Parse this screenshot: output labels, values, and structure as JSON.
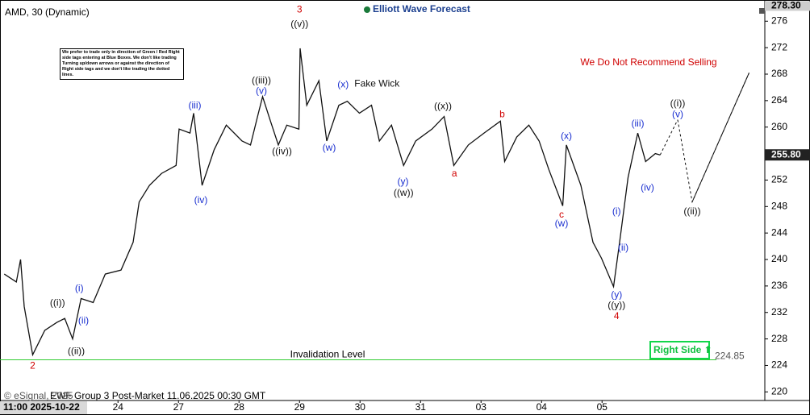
{
  "chart_data": {
    "type": "line",
    "title": "AMD, 30 (Dynamic)",
    "brand": "Elliott Wave Forecast",
    "footer": "EWF Group 3 Post-Market 11.06.2025 00:30 GMT",
    "copyright": "© eSignal, 2025",
    "x_cursor_label": "11:00 2025-10-22",
    "right_side_tag": "Right Side ⬆",
    "note": "We prefer to trade only in direction of Green / Red Right side tags entering at Blue Boxes. We don't like trading Turning up/down arrows or against the direction of Right side tags and we don't like trading the dotted lines.",
    "color": "#111111",
    "x": [
      -0.88,
      -0.68,
      -0.61,
      -0.55,
      -0.41,
      -0.21,
      -0.01,
      0.12,
      0.25,
      0.39,
      0.59,
      0.79,
      1.05,
      1.25,
      1.35,
      1.52,
      1.72,
      1.96,
      2.01,
      2.19,
      2.25,
      2.39,
      2.59,
      2.79,
      3.05,
      3.19,
      3.32,
      3.39,
      3.52,
      3.65,
      3.79,
      3.99,
      4.01,
      4.12,
      4.32,
      4.45,
      4.65,
      4.79,
      4.99,
      5.19,
      5.32,
      5.52,
      5.72,
      5.92,
      6.19,
      6.39,
      6.55,
      6.79,
      7.05,
      7.32,
      7.39,
      7.59,
      7.79,
      7.96,
      8.12,
      8.35,
      8.41,
      8.65,
      8.85,
      8.99,
      9.19,
      9.29,
      9.43,
      9.59,
      9.72,
      9.88,
      9.96
    ],
    "values": [
      237.8,
      236.6,
      240,
      232.9,
      225.6,
      229.3,
      230.5,
      231.1,
      228,
      234.1,
      233.5,
      237.8,
      238.4,
      242.6,
      248.7,
      251.2,
      253,
      254.2,
      259.7,
      259.1,
      262.1,
      251.2,
      256.6,
      260.3,
      257.9,
      257.3,
      262.1,
      264.6,
      260.9,
      257.3,
      260.3,
      259.7,
      271.9,
      263.3,
      267,
      257.9,
      263.3,
      263.9,
      262.1,
      263.3,
      257.9,
      260.3,
      254.2,
      257.9,
      259.7,
      261.6,
      254.2,
      257.3,
      259.1,
      260.9,
      254.8,
      258.5,
      260.3,
      257.9,
      253.6,
      248.1,
      257.3,
      251.2,
      242.6,
      240.2,
      235.9,
      242.6,
      252.4,
      259.1,
      254.8,
      256,
      255.8
    ],
    "projection": {
      "x": [
        10.25,
        10.49,
        11.43
      ],
      "values": [
        261.1,
        248.7,
        268.2
      ],
      "color": "#111111"
    },
    "ylim": [
      218.7,
      279.2
    ],
    "yticks": [
      220,
      224,
      228,
      232,
      236,
      240,
      244,
      248,
      252,
      256,
      260,
      264,
      268,
      272,
      276
    ],
    "xlim": [
      -0.95,
      11.69
    ],
    "xticks": [
      {
        "value": 1,
        "label": "24"
      },
      {
        "value": 2,
        "label": "27"
      },
      {
        "value": 3,
        "label": "28"
      },
      {
        "value": 4,
        "label": "29"
      },
      {
        "value": 5,
        "label": "30"
      },
      {
        "value": 6,
        "label": "31"
      },
      {
        "value": 7,
        "label": "03"
      },
      {
        "value": 8,
        "label": "04"
      },
      {
        "value": 9,
        "label": "05"
      }
    ],
    "last_price": {
      "value": 255.8,
      "label": "255.80"
    },
    "high_price": {
      "value": 278.3,
      "label": "278.30"
    },
    "invalidation": {
      "value": 224.85,
      "text": "Invalidation Level",
      "color": "#33cc33"
    },
    "annotations": [
      {
        "text": "3",
        "x": 4.0,
        "y": 277.7,
        "color": "#d00000"
      },
      {
        "text": "((v))",
        "x": 4.0,
        "y": 275.5,
        "color": "#111111"
      },
      {
        "text": "((iii))",
        "x": 3.37,
        "y": 267.0,
        "color": "#111111"
      },
      {
        "text": "(v)",
        "x": 3.37,
        "y": 265.4,
        "color": "#1a2fd0"
      },
      {
        "text": "(iii)",
        "x": 2.27,
        "y": 263.2,
        "color": "#1a2fd0"
      },
      {
        "text": "(iv)",
        "x": 2.37,
        "y": 248.9,
        "color": "#1a2fd0"
      },
      {
        "text": "((iv))",
        "x": 3.71,
        "y": 256.3,
        "color": "#111111"
      },
      {
        "text": "(x)",
        "x": 4.72,
        "y": 266.4,
        "color": "#1a2fd0"
      },
      {
        "text": "(w)",
        "x": 4.49,
        "y": 256.8,
        "color": "#1a2fd0"
      },
      {
        "text": "Fake Wick",
        "x": 5.28,
        "y": 266.5,
        "color": "#111111"
      },
      {
        "text": "((x))",
        "x": 6.37,
        "y": 263.1,
        "color": "#111111"
      },
      {
        "text": "(y)",
        "x": 5.71,
        "y": 251.7,
        "color": "#1a2fd0"
      },
      {
        "text": "((w))",
        "x": 5.72,
        "y": 250.0,
        "color": "#111111"
      },
      {
        "text": "b",
        "x": 7.35,
        "y": 261.9,
        "color": "#d00000"
      },
      {
        "text": "a",
        "x": 6.56,
        "y": 252.9,
        "color": "#d00000"
      },
      {
        "text": "(x)",
        "x": 8.41,
        "y": 258.6,
        "color": "#1a2fd0"
      },
      {
        "text": "c",
        "x": 8.33,
        "y": 246.7,
        "color": "#d00000"
      },
      {
        "text": "(w)",
        "x": 8.33,
        "y": 245.4,
        "color": "#1a2fd0"
      },
      {
        "text": "(iii)",
        "x": 9.59,
        "y": 260.5,
        "color": "#1a2fd0"
      },
      {
        "text": "(iv)",
        "x": 9.75,
        "y": 250.8,
        "color": "#1a2fd0"
      },
      {
        "text": "(i)",
        "x": 9.24,
        "y": 247.2,
        "color": "#1a2fd0"
      },
      {
        "text": "(ii)",
        "x": 9.35,
        "y": 241.7,
        "color": "#1a2fd0"
      },
      {
        "text": "(y)",
        "x": 9.24,
        "y": 234.6,
        "color": "#1a2fd0"
      },
      {
        "text": "((y))",
        "x": 9.24,
        "y": 233.0,
        "color": "#111111"
      },
      {
        "text": "4",
        "x": 9.24,
        "y": 231.4,
        "color": "#d00000"
      },
      {
        "text": "((i))",
        "x": 10.25,
        "y": 263.5,
        "color": "#111111"
      },
      {
        "text": "(v)",
        "x": 10.25,
        "y": 261.9,
        "color": "#1a2fd0"
      },
      {
        "text": "((ii))",
        "x": 10.49,
        "y": 247.2,
        "color": "#111111"
      },
      {
        "text": "(i)",
        "x": 0.36,
        "y": 235.6,
        "color": "#1a2fd0"
      },
      {
        "text": "(ii)",
        "x": 0.43,
        "y": 230.7,
        "color": "#1a2fd0"
      },
      {
        "text": "((i))",
        "x": 0.0,
        "y": 233.4,
        "color": "#111111"
      },
      {
        "text": "((ii))",
        "x": 0.31,
        "y": 226.1,
        "color": "#111111"
      },
      {
        "text": "2",
        "x": -0.41,
        "y": 223.9,
        "color": "#d00000"
      },
      {
        "text": "We Do Not Recommend Selling",
        "x": 9.77,
        "y": 269.7,
        "color": "#d00000"
      }
    ]
  }
}
